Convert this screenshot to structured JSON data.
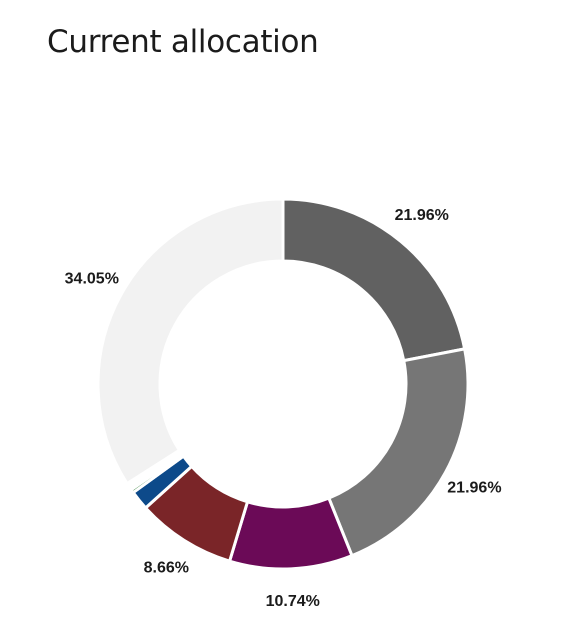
{
  "page": {
    "title": "Current allocation"
  },
  "chart_data": {
    "type": "pie",
    "title": "Current allocation",
    "donut": true,
    "slices": [
      {
        "value": 21.96,
        "label": "21.96%",
        "color": "#616161"
      },
      {
        "value": 21.96,
        "label": "21.96%",
        "color": "#767676"
      },
      {
        "value": 10.74,
        "label": "10.74%",
        "color": "#6b0a57"
      },
      {
        "value": 8.66,
        "label": "8.66%",
        "color": "#7a2528"
      },
      {
        "value": 1.7,
        "label": "",
        "color": "#0d4a8a"
      },
      {
        "value": 0.3,
        "label": "",
        "color": "#2e7d32"
      },
      {
        "value": 0.25,
        "label": "",
        "color": "#1a8a7a"
      },
      {
        "value": 0.2,
        "label": "",
        "color": "#d98b3a"
      },
      {
        "value": 0.18,
        "label": "",
        "color": "#c9a227"
      },
      {
        "value": 34.05,
        "label": "34.05%",
        "color": "#f2f2f2"
      }
    ]
  }
}
